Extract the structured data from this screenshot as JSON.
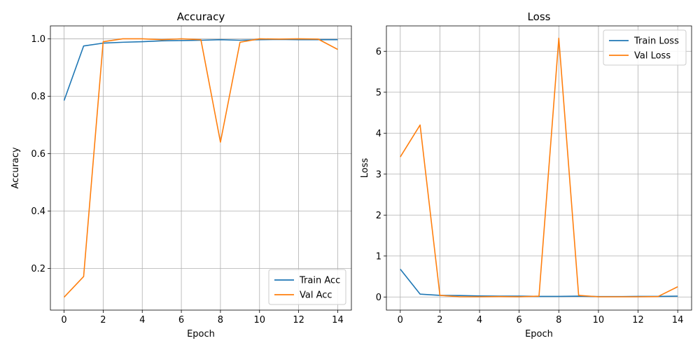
{
  "chart_data": [
    {
      "type": "line",
      "title": "Accuracy",
      "xlabel": "Epoch",
      "ylabel": "Accuracy",
      "xlim": [
        -0.7,
        14.7
      ],
      "ylim": [
        0.055,
        1.045
      ],
      "xticks": [
        0,
        2,
        4,
        6,
        8,
        10,
        12,
        14
      ],
      "yticks": [
        0.2,
        0.4,
        0.6,
        0.8,
        1.0
      ],
      "ytick_labels": [
        "0.2",
        "0.4",
        "0.6",
        "0.8",
        "1.0"
      ],
      "grid": true,
      "legend_position": "lower-right",
      "x": [
        0,
        1,
        2,
        3,
        4,
        5,
        6,
        7,
        8,
        9,
        10,
        11,
        12,
        13,
        14
      ],
      "series": [
        {
          "name": "Train Acc",
          "color": "#1f77b4",
          "values": [
            0.785,
            0.975,
            0.985,
            0.988,
            0.99,
            0.993,
            0.994,
            0.995,
            0.997,
            0.995,
            0.997,
            0.998,
            0.997,
            0.997,
            0.997
          ]
        },
        {
          "name": "Val Acc",
          "color": "#ff7f0e",
          "values": [
            0.1,
            0.172,
            0.99,
            1.0,
            1.0,
            0.997,
            1.0,
            0.997,
            0.64,
            0.988,
            1.0,
            0.999,
            1.0,
            0.999,
            0.963
          ]
        }
      ]
    },
    {
      "type": "line",
      "title": "Loss",
      "xlabel": "Epoch",
      "ylabel": "Loss",
      "xlim": [
        -0.7,
        14.7
      ],
      "ylim": [
        -0.32,
        6.62
      ],
      "xticks": [
        0,
        2,
        4,
        6,
        8,
        10,
        12,
        14
      ],
      "yticks": [
        0,
        1,
        2,
        3,
        4,
        5,
        6
      ],
      "ytick_labels": [
        "0",
        "1",
        "2",
        "3",
        "4",
        "5",
        "6"
      ],
      "grid": true,
      "legend_position": "upper-right",
      "x": [
        0,
        1,
        2,
        3,
        4,
        5,
        6,
        7,
        8,
        9,
        10,
        11,
        12,
        13,
        14
      ],
      "series": [
        {
          "name": "Train Loss",
          "color": "#1f77b4",
          "values": [
            0.68,
            0.07,
            0.04,
            0.035,
            0.025,
            0.02,
            0.02,
            0.015,
            0.015,
            0.02,
            0.01,
            0.01,
            0.015,
            0.015,
            0.02
          ]
        },
        {
          "name": "Val Loss",
          "color": "#ff7f0e",
          "values": [
            3.42,
            4.2,
            0.04,
            0.005,
            0.005,
            0.01,
            0.005,
            0.02,
            6.32,
            0.04,
            0.005,
            0.005,
            0.005,
            0.01,
            0.25
          ]
        }
      ]
    }
  ]
}
